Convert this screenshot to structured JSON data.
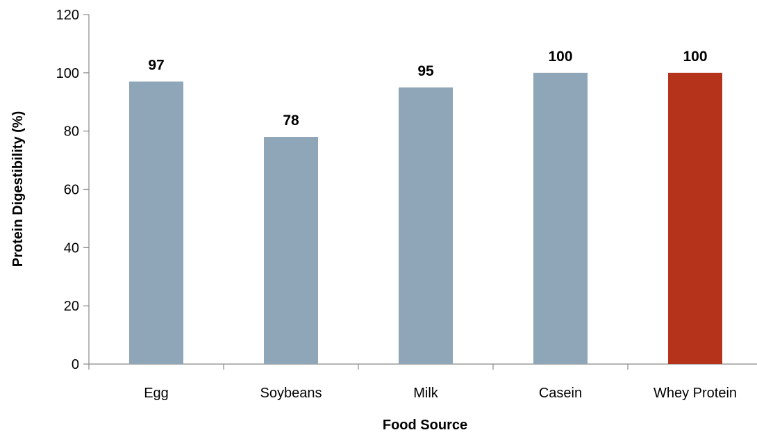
{
  "chart_data": {
    "type": "bar",
    "categories": [
      "Egg",
      "Soybeans",
      "Milk",
      "Casein",
      "Whey Protein"
    ],
    "values": [
      97,
      78,
      95,
      100,
      100
    ],
    "data_labels": [
      "97",
      "78",
      "95",
      "100",
      "100"
    ],
    "title": "",
    "xlabel": "Food Source",
    "ylabel": "Protein Digestibility (%)",
    "ylim": [
      0,
      120
    ],
    "yticks": [
      0,
      20,
      40,
      60,
      80,
      100,
      120
    ],
    "ytick_labels": [
      "0",
      "20",
      "40",
      "60",
      "80",
      "100",
      "120"
    ],
    "grid": false,
    "legend": "none",
    "colors": {
      "default_bar": "#8FA6B8",
      "highlight_bar": "#B5331A",
      "axis": "#898989"
    },
    "highlight_category": "Whey Protein"
  }
}
